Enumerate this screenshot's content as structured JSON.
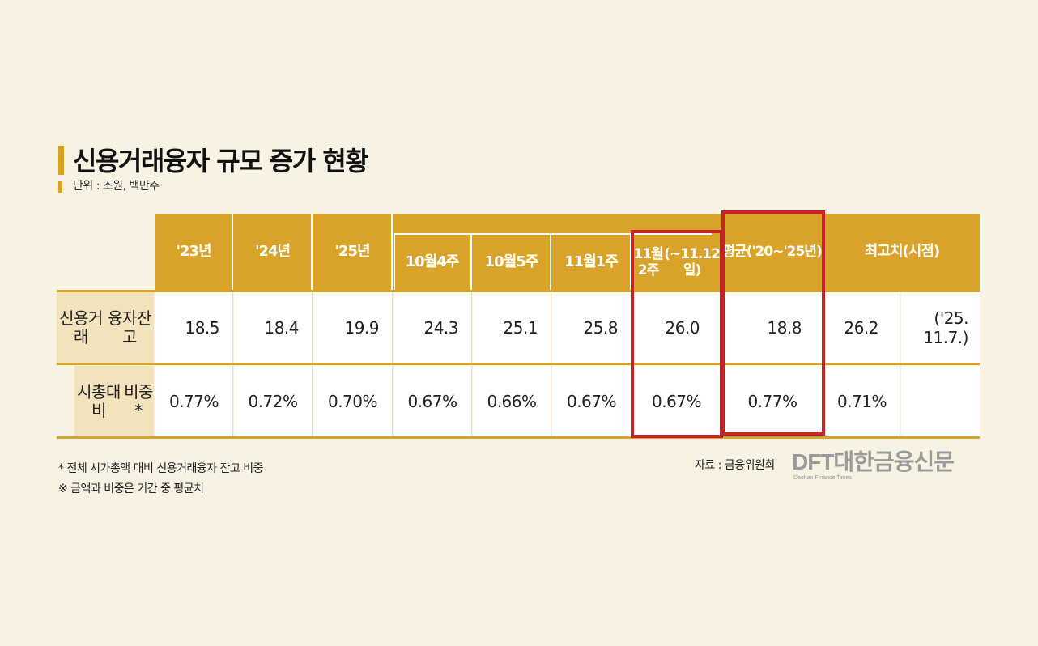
{
  "title": "신용거래융자 규모 증가 현황",
  "unit": "단위 : 조원, 백만주",
  "columns": [
    {
      "lines": [
        "'23년"
      ]
    },
    {
      "lines": [
        "'24년"
      ]
    },
    {
      "lines": [
        "'25년"
      ]
    },
    {
      "lines": [
        "10월",
        "4주"
      ]
    },
    {
      "lines": [
        "10월",
        "5주"
      ]
    },
    {
      "lines": [
        "11월",
        "1주"
      ]
    },
    {
      "lines": [
        "11월 2주",
        "(~11.12일)"
      ]
    },
    {
      "lines": [
        "평균",
        "('20~'25년)"
      ]
    },
    {
      "lines": [
        "최고치(시점)"
      ]
    }
  ],
  "rows": [
    {
      "label_lines": [
        "신용거래",
        "융자잔고"
      ],
      "values": [
        "18.5",
        "18.4",
        "19.9",
        "24.3",
        "25.1",
        "25.8",
        "26.0",
        "18.8",
        "26.2"
      ],
      "extra": [
        "('25.",
        "11.7.)"
      ]
    },
    {
      "label_lines": [
        "시총대비",
        "비중*"
      ],
      "values": [
        "0.77%",
        "0.72%",
        "0.70%",
        "0.67%",
        "0.66%",
        "0.67%",
        "0.67%",
        "0.77%",
        "0.71%"
      ],
      "extra": [
        "",
        ""
      ]
    }
  ],
  "chart_data": {
    "type": "table",
    "title": "신용거래융자 규모 증가 현황",
    "unit": "단위 : 조원, 백만주",
    "columns": [
      "'23년",
      "'24년",
      "'25년",
      "10월 4주",
      "10월 5주",
      "11월 1주",
      "11월 2주 (~11.12일)",
      "평균 ('20~'25년)",
      "최고치(시점)"
    ],
    "rows": [
      {
        "name": "신용거래융자잔고",
        "values": [
          18.5,
          18.4,
          19.9,
          24.3,
          25.1,
          25.8,
          26.0,
          18.8,
          26.2
        ],
        "peak_date": "('25. 11.7.)"
      },
      {
        "name": "시총대비 비중*",
        "values": [
          0.77,
          0.72,
          0.7,
          0.67,
          0.66,
          0.67,
          0.67,
          0.77,
          0.71
        ],
        "value_unit": "%"
      }
    ],
    "highlighted_columns": [
      "11월 2주 (~11.12일)",
      "평균 ('20~'25년)"
    ]
  },
  "notes": [
    "* 전체 시가총액 대비 신용거래융자 잔고 비중",
    "※ 금액과 비중은 기간 중 평균치"
  ],
  "source": "자료 : 금융위원회",
  "logo_text": "DFT대한금융신문",
  "logo_subtext": "Daehan Finance Times",
  "colors": {
    "header": "#d9a329",
    "highlight": "#c62424",
    "label_bg": "#f2e3bc",
    "background": "#f7f2e2"
  }
}
